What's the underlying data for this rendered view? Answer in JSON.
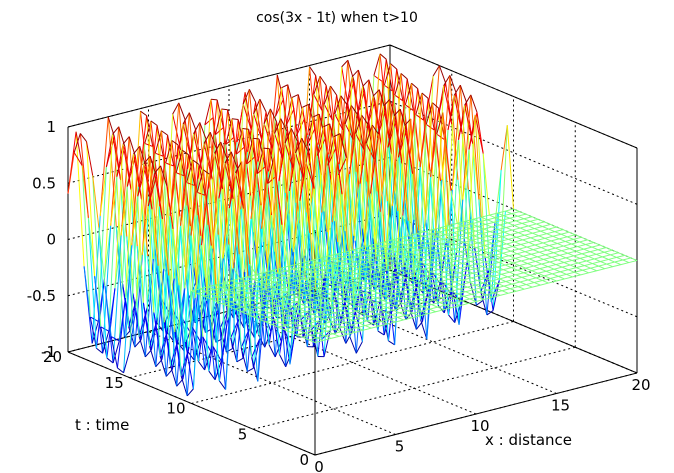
{
  "chart_data": {
    "type": "surface",
    "title": "cos(3x - 1t) when t>10",
    "xlabel": "x : distance",
    "ylabel": "t : time",
    "zlabel": "",
    "x_ticks": [
      "0",
      "5",
      "10",
      "15",
      "20"
    ],
    "y_ticks": [
      "0",
      "5",
      "10",
      "15",
      "20"
    ],
    "z_ticks": [
      "-1",
      "-0.5",
      "0",
      "0.5",
      "1"
    ],
    "xlim": [
      0,
      20
    ],
    "ylim": [
      0,
      20
    ],
    "zlim": [
      -1,
      1
    ],
    "function": "cos(3x - 1t) for t > 10, 0 otherwise",
    "x_start": 0,
    "x_end": 20,
    "x_step": 0.5,
    "t_start": 0,
    "t_end": 20,
    "t_step": 0.5,
    "colormap": [
      "#00008f",
      "#0000ff",
      "#00ffff",
      "#7fff7f",
      "#ffff00",
      "#ff0000",
      "#800000"
    ],
    "grid": true,
    "style": "mesh"
  }
}
